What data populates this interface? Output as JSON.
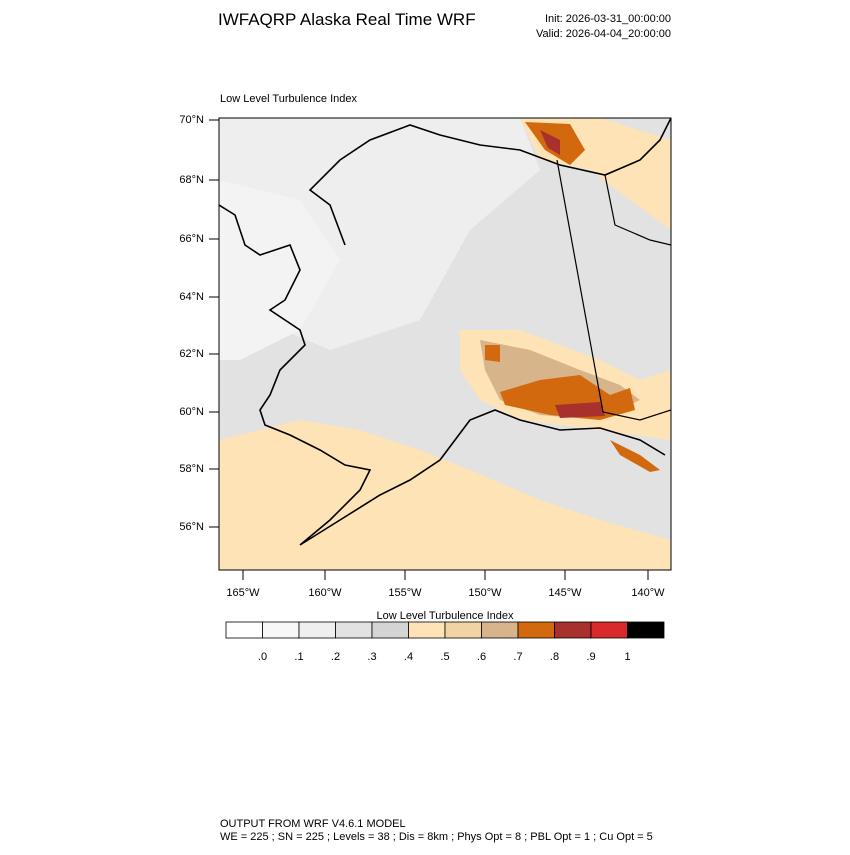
{
  "header": {
    "title": "IWFAQRP Alaska Real Time WRF",
    "init": "Init: 2026-03-31_00:00:00",
    "valid": "Valid: 2026-04-04_20:00:00"
  },
  "map": {
    "subtitle": "Low Level Turbulence Index",
    "lat_labels": [
      "70°N",
      "68°N",
      "66°N",
      "64°N",
      "62°N",
      "60°N",
      "58°N",
      "56°N"
    ],
    "lon_labels": [
      "165°W",
      "160°W",
      "155°W",
      "150°W",
      "145°W",
      "140°W"
    ]
  },
  "colorbar": {
    "title": "Low Level Turbulence Index",
    "colors": [
      "#ffffff",
      "#f7f7f7",
      "#efefef",
      "#e2e2e2",
      "#d4d4d4",
      "#fde3b5",
      "#f2d3a3",
      "#d7b48a",
      "#d2690f",
      "#a8302d",
      "#d82a2a",
      "#000000"
    ],
    "labels": [
      ".0",
      ".1",
      ".2",
      ".3",
      ".4",
      ".5",
      ".6",
      ".7",
      ".8",
      ".9",
      "1"
    ]
  },
  "footer": {
    "line1": "OUTPUT FROM WRF V4.6.1 MODEL",
    "line2": "WE = 225 ; SN = 225 ; Levels = 38 ; Dis = 8km ; Phys Opt = 8 ; PBL Opt = 1 ; Cu Opt = 5"
  }
}
